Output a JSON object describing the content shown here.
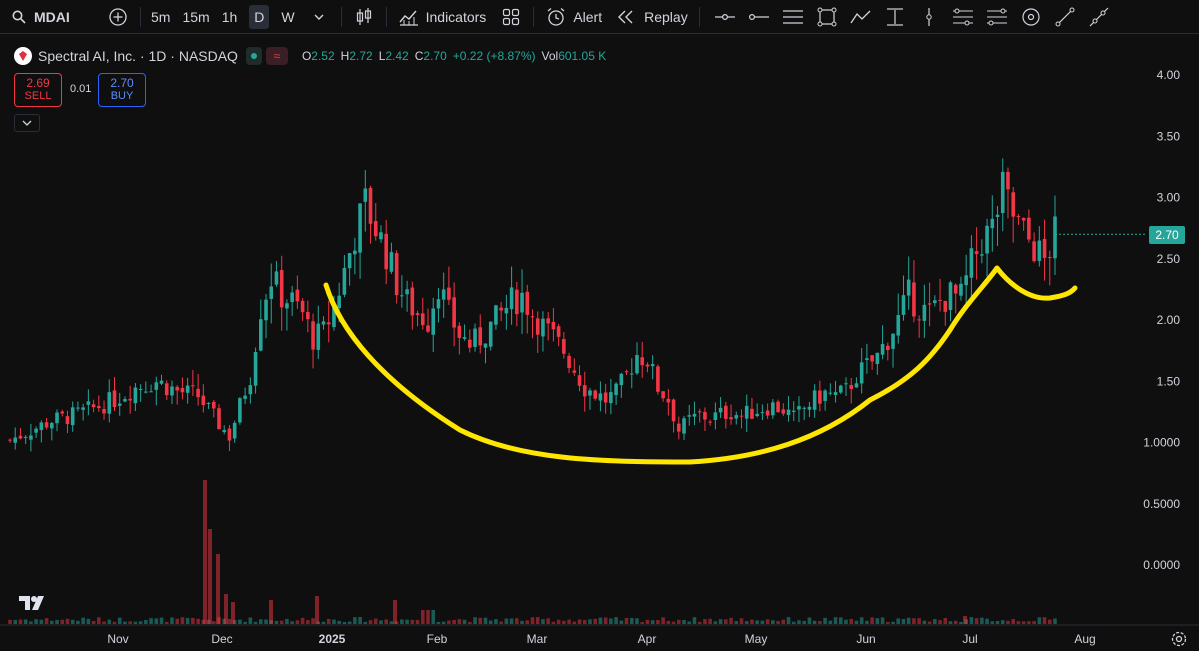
{
  "toolbar": {
    "symbol": "MDAI",
    "timeframes": [
      "5m",
      "15m",
      "1h",
      "D",
      "W"
    ],
    "active_timeframe": "D",
    "indicators_label": "Indicators",
    "alert_label": "Alert",
    "replay_label": "Replay"
  },
  "legend": {
    "title": "Spectral AI, Inc. · 1D · NASDAQ",
    "wave_glyph": "≈",
    "o_label": "O",
    "o_value": "2.52",
    "h_label": "H",
    "h_value": "2.72",
    "l_label": "L",
    "l_value": "2.42",
    "c_label": "C",
    "c_value": "2.70",
    "change": "+0.22 (+8.87%)",
    "vol_label": "Vol",
    "vol_value": "601.05 K"
  },
  "trade": {
    "sell_price": "2.69",
    "sell_label": "SELL",
    "spread": "0.01",
    "buy_price": "2.70",
    "buy_label": "BUY"
  },
  "current_price_tag": "2.70",
  "colors": {
    "up": "#26a69a",
    "down": "#f23645",
    "annotation": "#ffe600",
    "background": "#0f0f0f"
  },
  "chart_data": {
    "type": "candlestick",
    "title": "Spectral AI, Inc. · 1D · NASDAQ",
    "y_ticks": [
      "4.00",
      "3.50",
      "3.00",
      "2.50",
      "2.00",
      "1.50",
      "1.0000",
      "0.5000",
      "0.0000"
    ],
    "ylim": [
      0,
      4
    ],
    "x_tick_labels": [
      "Nov",
      "Dec",
      "2025",
      "Feb",
      "Mar",
      "Apr",
      "May",
      "Jun",
      "Jul",
      "Aug"
    ],
    "price_path": [
      [
        0,
        1.02
      ],
      [
        2,
        1.1
      ],
      [
        4,
        1.18
      ],
      [
        6,
        1.22
      ],
      [
        8,
        1.28
      ],
      [
        10,
        1.35
      ],
      [
        12,
        1.45
      ],
      [
        14,
        1.5
      ],
      [
        16,
        1.42
      ],
      [
        18,
        1.38
      ],
      [
        20,
        1.15
      ],
      [
        21,
        1.05
      ],
      [
        22,
        1.3
      ],
      [
        23,
        1.55
      ],
      [
        24,
        2.1
      ],
      [
        25,
        2.35
      ],
      [
        26,
        2.2
      ],
      [
        27,
        2.15
      ],
      [
        28,
        2.05
      ],
      [
        29,
        1.85
      ],
      [
        30,
        1.9
      ],
      [
        31,
        2.1
      ],
      [
        32,
        2.4
      ],
      [
        33,
        2.7
      ],
      [
        34,
        2.95
      ],
      [
        35,
        2.75
      ],
      [
        36,
        2.55
      ],
      [
        37,
        2.3
      ],
      [
        38,
        2.15
      ],
      [
        39,
        2.05
      ],
      [
        40,
        2.0
      ],
      [
        41,
        2.3
      ],
      [
        42,
        2.05
      ],
      [
        43,
        1.88
      ],
      [
        44,
        1.8
      ],
      [
        45,
        1.85
      ],
      [
        46,
        1.95
      ],
      [
        47,
        2.05
      ],
      [
        48,
        2.15
      ],
      [
        49,
        2.2
      ],
      [
        50,
        2.05
      ],
      [
        51,
        1.95
      ],
      [
        52,
        1.85
      ],
      [
        53,
        1.75
      ],
      [
        54,
        1.6
      ],
      [
        55,
        1.45
      ],
      [
        56,
        1.4
      ],
      [
        57,
        1.35
      ],
      [
        58,
        1.4
      ],
      [
        59,
        1.55
      ],
      [
        60,
        1.72
      ],
      [
        61,
        1.68
      ],
      [
        62,
        1.45
      ],
      [
        63,
        1.35
      ],
      [
        64,
        1.1
      ],
      [
        65,
        1.18
      ],
      [
        66,
        1.22
      ],
      [
        67,
        1.2
      ],
      [
        68,
        1.23
      ],
      [
        69,
        1.25
      ],
      [
        70,
        1.22
      ],
      [
        71,
        1.25
      ],
      [
        72,
        1.28
      ],
      [
        73,
        1.3
      ],
      [
        74,
        1.27
      ],
      [
        75,
        1.2
      ],
      [
        76,
        1.28
      ],
      [
        77,
        1.35
      ],
      [
        78,
        1.4
      ],
      [
        79,
        1.38
      ],
      [
        80,
        1.42
      ],
      [
        81,
        1.55
      ],
      [
        82,
        1.62
      ],
      [
        83,
        1.7
      ],
      [
        84,
        1.85
      ],
      [
        85,
        2.0
      ],
      [
        86,
        2.2
      ],
      [
        87,
        2.1
      ],
      [
        88,
        2.05
      ],
      [
        89,
        2.15
      ],
      [
        90,
        2.2
      ],
      [
        91,
        2.18
      ],
      [
        92,
        2.45
      ],
      [
        93,
        2.65
      ],
      [
        94,
        2.75
      ],
      [
        95,
        3.05
      ],
      [
        96,
        2.85
      ],
      [
        97,
        2.7
      ],
      [
        98,
        2.6
      ],
      [
        99,
        2.48
      ],
      [
        100,
        2.7
      ]
    ],
    "volume_spike": "0.72",
    "annotation": "yellow cup-and-handle curve"
  }
}
